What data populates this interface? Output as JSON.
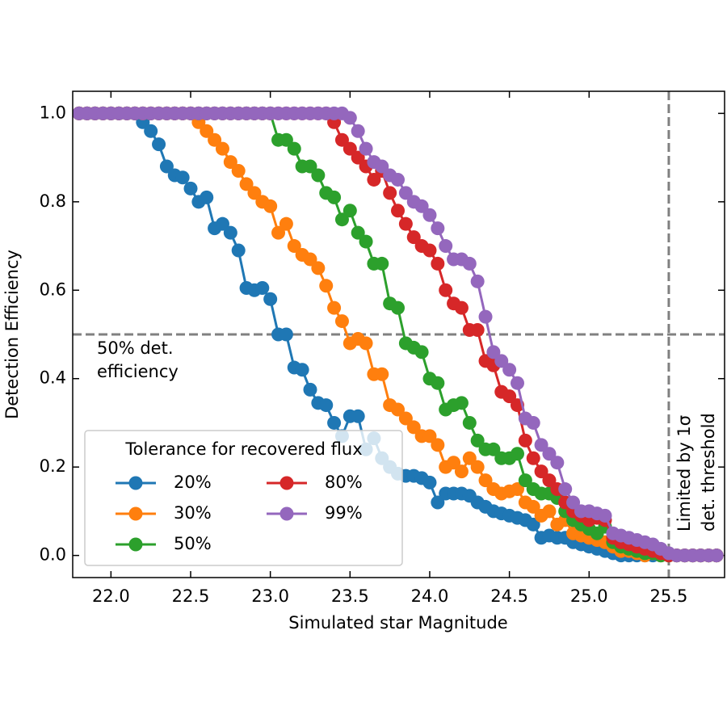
{
  "chart_data": {
    "type": "line",
    "xlabel": "Simulated star Magnitude",
    "ylabel": "Detection Efficiency",
    "xlim": [
      21.76,
      25.85
    ],
    "ylim": [
      -0.05,
      1.05
    ],
    "xticks": [
      {
        "value": 22,
        "label": "22.0"
      },
      22.5,
      {
        "value": 23,
        "label": "23.0"
      },
      23.5,
      {
        "value": 24,
        "label": "24.0"
      },
      24.5,
      {
        "value": 25,
        "label": "25.0"
      },
      25.5
    ],
    "yticks": [
      {
        "value": 0,
        "label": "0.0"
      },
      0.2,
      0.4,
      0.6,
      0.8,
      {
        "value": 1,
        "label": "1.0"
      }
    ],
    "hline": 0.5,
    "vline": 25.5,
    "annotations": [
      [
        "50% det.",
        "efficiency"
      ],
      [
        "Limited by 1σ",
        "det. threshold"
      ]
    ],
    "legend_title": "Tolerance for recovered flux",
    "legend": "lower left",
    "x": [
      21.8,
      21.85,
      21.9,
      21.95,
      22.0,
      22.05,
      22.1,
      22.15,
      22.2,
      22.25,
      22.3,
      22.35,
      22.4,
      22.45,
      22.5,
      22.55,
      22.6,
      22.65,
      22.7,
      22.75,
      22.8,
      22.85,
      22.9,
      22.95,
      23.0,
      23.05,
      23.1,
      23.15,
      23.2,
      23.25,
      23.3,
      23.35,
      23.4,
      23.45,
      23.5,
      23.55,
      23.6,
      23.65,
      23.7,
      23.75,
      23.8,
      23.85,
      23.9,
      23.95,
      24.0,
      24.05,
      24.1,
      24.15,
      24.2,
      24.25,
      24.3,
      24.35,
      24.4,
      24.45,
      24.5,
      24.55,
      24.6,
      24.65,
      24.7,
      24.75,
      24.8,
      24.85,
      24.9,
      24.95,
      25.0,
      25.05,
      25.1,
      25.15,
      25.2,
      25.25,
      25.3,
      25.35,
      25.4,
      25.45,
      25.5,
      25.55,
      25.6,
      25.65,
      25.7,
      25.75,
      25.8
    ],
    "series": [
      {
        "name": "20%",
        "color": "#1f77b4",
        "values": [
          1,
          1,
          1,
          1,
          1,
          1,
          1,
          1,
          0.98,
          0.96,
          0.93,
          0.88,
          0.86,
          0.855,
          0.83,
          0.8,
          0.81,
          0.74,
          0.75,
          0.73,
          0.69,
          0.605,
          0.6,
          0.605,
          0.58,
          0.5,
          0.5,
          0.425,
          0.42,
          0.375,
          0.345,
          0.34,
          0.3,
          0.27,
          0.315,
          0.315,
          0.24,
          0.265,
          0.22,
          0.2,
          0.185,
          0.18,
          0.18,
          0.175,
          0.165,
          0.12,
          0.14,
          0.14,
          0.14,
          0.135,
          0.12,
          0.11,
          0.1,
          0.095,
          0.09,
          0.085,
          0.08,
          0.07,
          0.04,
          0.045,
          0.04,
          0.04,
          0.03,
          0.025,
          0.02,
          0.015,
          0.01,
          0.005,
          0,
          0,
          0,
          0,
          0,
          0,
          0,
          0,
          0,
          0,
          0,
          0,
          0
        ]
      },
      {
        "name": "30%",
        "color": "#ff7f0e",
        "values": [
          1,
          1,
          1,
          1,
          1,
          1,
          1,
          1,
          1,
          1,
          1,
          1,
          1,
          1,
          1,
          0.98,
          0.96,
          0.94,
          0.92,
          0.89,
          0.87,
          0.84,
          0.82,
          0.8,
          0.79,
          0.73,
          0.75,
          0.7,
          0.68,
          0.67,
          0.65,
          0.61,
          0.56,
          0.53,
          0.48,
          0.49,
          0.48,
          0.41,
          0.41,
          0.34,
          0.33,
          0.31,
          0.29,
          0.27,
          0.27,
          0.25,
          0.2,
          0.21,
          0.19,
          0.22,
          0.2,
          0.17,
          0.15,
          0.14,
          0.145,
          0.15,
          0.12,
          0.11,
          0.09,
          0.1,
          0.07,
          0.08,
          0.05,
          0.045,
          0.04,
          0.035,
          0.03,
          0.02,
          0.01,
          0.01,
          0.005,
          0,
          0.005,
          0,
          0,
          0,
          0,
          0,
          0,
          0,
          0
        ]
      },
      {
        "name": "50%",
        "color": "#2ca02c",
        "values": [
          1,
          1,
          1,
          1,
          1,
          1,
          1,
          1,
          1,
          1,
          1,
          1,
          1,
          1,
          1,
          1,
          1,
          1,
          1,
          1,
          1,
          1,
          1,
          1,
          1,
          0.94,
          0.94,
          0.92,
          0.88,
          0.88,
          0.86,
          0.82,
          0.81,
          0.76,
          0.78,
          0.73,
          0.71,
          0.66,
          0.66,
          0.57,
          0.56,
          0.48,
          0.47,
          0.46,
          0.4,
          0.39,
          0.33,
          0.34,
          0.345,
          0.3,
          0.26,
          0.24,
          0.24,
          0.22,
          0.22,
          0.23,
          0.17,
          0.15,
          0.14,
          0.14,
          0.13,
          0.1,
          0.08,
          0.07,
          0.06,
          0.05,
          0.065,
          0.03,
          0.02,
          0.015,
          0.01,
          0.005,
          0.005,
          0,
          0,
          0,
          0,
          0,
          0,
          0,
          0
        ]
      },
      {
        "name": "80%",
        "color": "#d62728",
        "values": [
          1,
          1,
          1,
          1,
          1,
          1,
          1,
          1,
          1,
          1,
          1,
          1,
          1,
          1,
          1,
          1,
          1,
          1,
          1,
          1,
          1,
          1,
          1,
          1,
          1,
          1,
          1,
          1,
          1,
          1,
          1,
          1,
          0.98,
          0.94,
          0.92,
          0.9,
          0.88,
          0.85,
          0.87,
          0.82,
          0.78,
          0.75,
          0.72,
          0.7,
          0.69,
          0.66,
          0.6,
          0.57,
          0.56,
          0.51,
          0.51,
          0.44,
          0.43,
          0.37,
          0.36,
          0.34,
          0.26,
          0.22,
          0.19,
          0.17,
          0.15,
          0.12,
          0.1,
          0.09,
          0.08,
          0.085,
          0.08,
          0.04,
          0.03,
          0.025,
          0.02,
          0.015,
          0.01,
          0.005,
          0,
          0,
          0,
          0,
          0,
          0,
          0
        ]
      },
      {
        "name": "99%",
        "color": "#9467bd",
        "values": [
          1,
          1,
          1,
          1,
          1,
          1,
          1,
          1,
          1,
          1,
          1,
          1,
          1,
          1,
          1,
          1,
          1,
          1,
          1,
          1,
          1,
          1,
          1,
          1,
          1,
          1,
          1,
          1,
          1,
          1,
          1,
          1,
          1,
          1,
          0.99,
          0.96,
          0.92,
          0.89,
          0.88,
          0.86,
          0.85,
          0.82,
          0.8,
          0.79,
          0.77,
          0.74,
          0.7,
          0.67,
          0.67,
          0.66,
          0.62,
          0.54,
          0.46,
          0.44,
          0.42,
          0.39,
          0.31,
          0.3,
          0.25,
          0.23,
          0.21,
          0.15,
          0.12,
          0.1,
          0.1,
          0.095,
          0.09,
          0.05,
          0.045,
          0.04,
          0.035,
          0.03,
          0.025,
          0.015,
          0.005,
          0,
          0,
          0,
          0,
          0,
          0
        ]
      }
    ]
  }
}
